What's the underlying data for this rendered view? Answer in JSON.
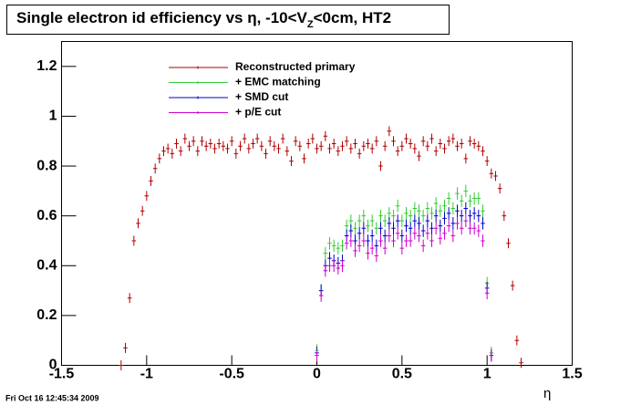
{
  "chart_data": {
    "type": "scatter",
    "title": "Single electron id efficiency vs η, -10<V",
    "title_sub": "Z",
    "title_end": "<0cm, HT2",
    "xlabel": "η",
    "footer": "Fri Oct 16 12:45:34 2009",
    "xlim": [
      -1.5,
      1.5
    ],
    "ylim": [
      0,
      1.3
    ],
    "xticks": [
      -1.5,
      -1,
      -0.5,
      0,
      0.5,
      1,
      1.5
    ],
    "yticks": [
      0,
      0.2,
      0.4,
      0.6,
      0.8,
      1,
      1.2
    ],
    "series": [
      {
        "name": "Reconstructed primary",
        "color": "#b00000",
        "error": 0.02,
        "x": [
          -1.15,
          -1.125,
          -1.1,
          -1.075,
          -1.05,
          -1.025,
          -1.0,
          -0.975,
          -0.95,
          -0.925,
          -0.9,
          -0.875,
          -0.85,
          -0.825,
          -0.8,
          -0.775,
          -0.75,
          -0.725,
          -0.7,
          -0.675,
          -0.65,
          -0.625,
          -0.6,
          -0.575,
          -0.55,
          -0.525,
          -0.5,
          -0.475,
          -0.45,
          -0.425,
          -0.4,
          -0.375,
          -0.35,
          -0.325,
          -0.3,
          -0.275,
          -0.25,
          -0.225,
          -0.2,
          -0.175,
          -0.15,
          -0.125,
          -0.1,
          -0.075,
          -0.05,
          -0.025,
          0.0,
          0.025,
          0.05,
          0.075,
          0.1,
          0.125,
          0.15,
          0.175,
          0.2,
          0.225,
          0.25,
          0.275,
          0.3,
          0.325,
          0.35,
          0.375,
          0.4,
          0.425,
          0.45,
          0.475,
          0.5,
          0.525,
          0.55,
          0.575,
          0.6,
          0.625,
          0.65,
          0.675,
          0.7,
          0.725,
          0.75,
          0.775,
          0.8,
          0.825,
          0.85,
          0.875,
          0.9,
          0.925,
          0.95,
          0.975,
          1.0,
          1.025,
          1.05,
          1.075,
          1.1,
          1.125,
          1.15,
          1.175,
          1.2
        ],
        "values": [
          0.0,
          0.07,
          0.27,
          0.5,
          0.57,
          0.62,
          0.68,
          0.74,
          0.79,
          0.83,
          0.86,
          0.87,
          0.85,
          0.89,
          0.86,
          0.91,
          0.88,
          0.9,
          0.86,
          0.9,
          0.88,
          0.89,
          0.87,
          0.89,
          0.88,
          0.87,
          0.9,
          0.85,
          0.88,
          0.91,
          0.87,
          0.89,
          0.91,
          0.88,
          0.85,
          0.9,
          0.88,
          0.87,
          0.91,
          0.86,
          0.82,
          0.9,
          0.88,
          0.83,
          0.89,
          0.91,
          0.87,
          0.88,
          0.92,
          0.87,
          0.89,
          0.86,
          0.88,
          0.9,
          0.87,
          0.89,
          0.85,
          0.88,
          0.89,
          0.87,
          0.9,
          0.8,
          0.88,
          0.94,
          0.9,
          0.86,
          0.88,
          0.91,
          0.89,
          0.87,
          0.84,
          0.9,
          0.88,
          0.91,
          0.86,
          0.89,
          0.87,
          0.9,
          0.91,
          0.88,
          0.89,
          0.83,
          0.9,
          0.89,
          0.88,
          0.86,
          0.82,
          0.77,
          0.76,
          0.71,
          0.6,
          0.49,
          0.32,
          0.1,
          0.01
        ]
      },
      {
        "name": "+ EMC matching",
        "color": "#33cc33",
        "error": 0.025,
        "x": [
          0.0,
          0.025,
          0.05,
          0.075,
          0.1,
          0.125,
          0.15,
          0.175,
          0.2,
          0.225,
          0.25,
          0.275,
          0.3,
          0.325,
          0.35,
          0.375,
          0.4,
          0.425,
          0.45,
          0.475,
          0.5,
          0.525,
          0.55,
          0.575,
          0.6,
          0.625,
          0.65,
          0.675,
          0.7,
          0.725,
          0.75,
          0.775,
          0.8,
          0.825,
          0.85,
          0.875,
          0.9,
          0.925,
          0.95,
          0.975,
          1.0,
          1.025
        ],
        "values": [
          0.06,
          0.3,
          0.45,
          0.49,
          0.48,
          0.47,
          0.48,
          0.56,
          0.58,
          0.55,
          0.58,
          0.6,
          0.56,
          0.58,
          0.55,
          0.6,
          0.58,
          0.61,
          0.6,
          0.64,
          0.58,
          0.61,
          0.6,
          0.63,
          0.62,
          0.6,
          0.63,
          0.61,
          0.65,
          0.62,
          0.64,
          0.67,
          0.63,
          0.69,
          0.66,
          0.7,
          0.66,
          0.67,
          0.67,
          0.62,
          0.33,
          0.05
        ]
      },
      {
        "name": "+ SMD cut",
        "color": "#0000cc",
        "error": 0.025,
        "x": [
          0.0,
          0.025,
          0.05,
          0.075,
          0.1,
          0.125,
          0.15,
          0.175,
          0.2,
          0.225,
          0.25,
          0.275,
          0.3,
          0.325,
          0.35,
          0.375,
          0.4,
          0.425,
          0.45,
          0.475,
          0.5,
          0.525,
          0.55,
          0.575,
          0.6,
          0.625,
          0.65,
          0.675,
          0.7,
          0.725,
          0.75,
          0.775,
          0.8,
          0.825,
          0.85,
          0.875,
          0.9,
          0.925,
          0.95,
          0.975,
          1.0,
          1.025
        ],
        "values": [
          0.05,
          0.3,
          0.4,
          0.43,
          0.42,
          0.41,
          0.42,
          0.52,
          0.54,
          0.5,
          0.53,
          0.55,
          0.5,
          0.52,
          0.48,
          0.55,
          0.52,
          0.57,
          0.55,
          0.58,
          0.52,
          0.56,
          0.55,
          0.58,
          0.57,
          0.54,
          0.58,
          0.55,
          0.6,
          0.56,
          0.59,
          0.61,
          0.57,
          0.62,
          0.6,
          0.63,
          0.6,
          0.61,
          0.6,
          0.57,
          0.31,
          0.04
        ]
      },
      {
        "name": "+ p/E cut",
        "color": "#cc00cc",
        "error": 0.025,
        "x": [
          0.0,
          0.025,
          0.05,
          0.075,
          0.1,
          0.125,
          0.15,
          0.175,
          0.2,
          0.225,
          0.25,
          0.275,
          0.3,
          0.325,
          0.35,
          0.375,
          0.4,
          0.425,
          0.45,
          0.475,
          0.5,
          0.525,
          0.55,
          0.575,
          0.6,
          0.625,
          0.65,
          0.675,
          0.7,
          0.725,
          0.75,
          0.775,
          0.8,
          0.825,
          0.85,
          0.875,
          0.9,
          0.925,
          0.95,
          0.975,
          1.0,
          1.025
        ],
        "values": [
          0.04,
          0.28,
          0.38,
          0.4,
          0.4,
          0.39,
          0.4,
          0.49,
          0.5,
          0.46,
          0.48,
          0.5,
          0.45,
          0.47,
          0.44,
          0.5,
          0.47,
          0.52,
          0.5,
          0.53,
          0.47,
          0.5,
          0.5,
          0.53,
          0.52,
          0.48,
          0.53,
          0.5,
          0.55,
          0.51,
          0.53,
          0.56,
          0.52,
          0.57,
          0.55,
          0.58,
          0.55,
          0.55,
          0.54,
          0.5,
          0.29,
          0.04
        ]
      }
    ]
  }
}
